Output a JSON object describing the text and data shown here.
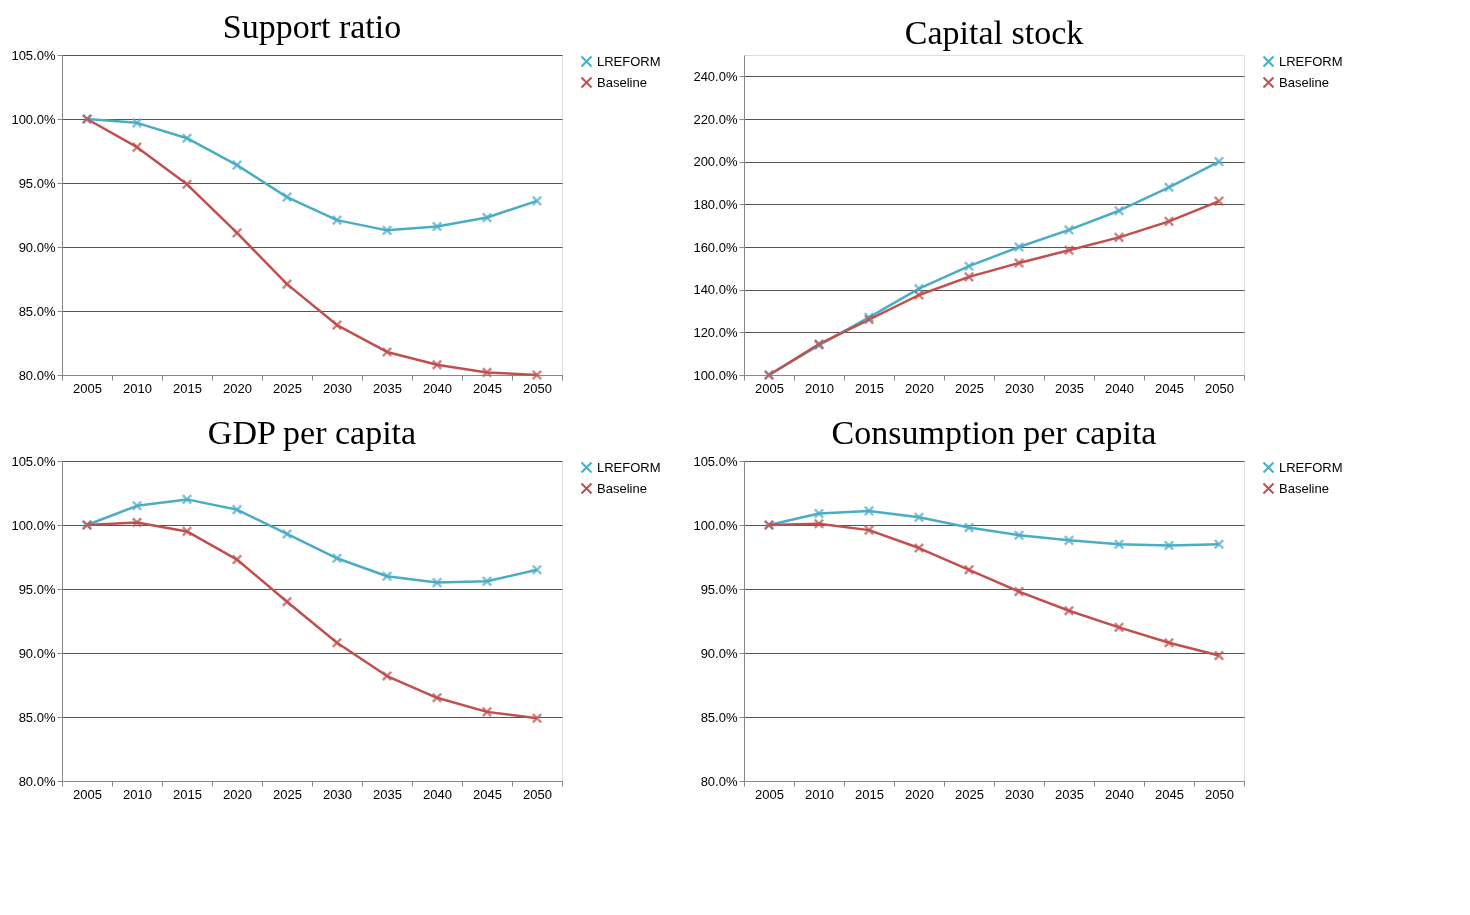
{
  "chart_data": [
    {
      "type": "line",
      "title": "Support ratio",
      "categories": [
        "2005",
        "2010",
        "2015",
        "2020",
        "2025",
        "2030",
        "2035",
        "2040",
        "2045",
        "2050"
      ],
      "ylim": [
        80,
        105
      ],
      "yticks": [
        {
          "value": 80,
          "label": "80.0%"
        },
        {
          "value": 85,
          "label": "85.0%"
        },
        {
          "value": 90,
          "label": "90.0%"
        },
        {
          "value": 95,
          "label": "95.0%"
        },
        {
          "value": 100,
          "label": "100.0%"
        },
        {
          "value": 105,
          "label": "105.0%"
        }
      ],
      "grid": "y",
      "legend": "right",
      "marker": "cross",
      "series": [
        {
          "name": "LREFORM",
          "color": "#4bacc6",
          "values": [
            100,
            99.7,
            98.5,
            96.4,
            93.9,
            92.1,
            91.3,
            91.6,
            92.3,
            93.6
          ]
        },
        {
          "name": "Baseline",
          "color": "#c0504d",
          "values": [
            100,
            97.8,
            94.9,
            91.1,
            87.1,
            83.9,
            81.8,
            80.8,
            80.2,
            80.0
          ]
        }
      ]
    },
    {
      "type": "line",
      "title": "Capital stock",
      "categories": [
        "2005",
        "2010",
        "2015",
        "2020",
        "2025",
        "2030",
        "2035",
        "2040",
        "2045",
        "2050"
      ],
      "ylim": [
        100,
        250
      ],
      "yticks": [
        {
          "value": 100,
          "label": "100.0%"
        },
        {
          "value": 120,
          "label": "120.0%"
        },
        {
          "value": 140,
          "label": "140.0%"
        },
        {
          "value": 160,
          "label": "160.0%"
        },
        {
          "value": 180,
          "label": "180.0%"
        },
        {
          "value": 200,
          "label": "200.0%"
        },
        {
          "value": 220,
          "label": "220.0%"
        },
        {
          "value": 240,
          "label": "240.0%"
        }
      ],
      "grid": "y",
      "legend": "right",
      "marker": "cross",
      "series": [
        {
          "name": "LREFORM",
          "color": "#4bacc6",
          "values": [
            100,
            114,
            127,
            140.5,
            151,
            160,
            168,
            177,
            188,
            200
          ]
        },
        {
          "name": "Baseline",
          "color": "#c0504d",
          "values": [
            100,
            114.5,
            126,
            137.5,
            146,
            152.5,
            158.5,
            164.5,
            172,
            181.5
          ]
        }
      ]
    },
    {
      "type": "line",
      "title": "GDP per capita",
      "categories": [
        "2005",
        "2010",
        "2015",
        "2020",
        "2025",
        "2030",
        "2035",
        "2040",
        "2045",
        "2050"
      ],
      "ylim": [
        80,
        105
      ],
      "yticks": [
        {
          "value": 80,
          "label": "80.0%"
        },
        {
          "value": 85,
          "label": "85.0%"
        },
        {
          "value": 90,
          "label": "90.0%"
        },
        {
          "value": 95,
          "label": "95.0%"
        },
        {
          "value": 100,
          "label": "100.0%"
        },
        {
          "value": 105,
          "label": "105.0%"
        }
      ],
      "grid": "y",
      "legend": "right",
      "marker": "cross",
      "series": [
        {
          "name": "LREFORM",
          "color": "#4bacc6",
          "values": [
            100,
            101.5,
            102,
            101.2,
            99.3,
            97.4,
            96.0,
            95.5,
            95.6,
            96.5
          ]
        },
        {
          "name": "Baseline",
          "color": "#c0504d",
          "values": [
            100,
            100.2,
            99.5,
            97.3,
            94.0,
            90.8,
            88.2,
            86.5,
            85.4,
            84.9
          ]
        }
      ]
    },
    {
      "type": "line",
      "title": "Consumption per capita",
      "categories": [
        "2005",
        "2010",
        "2015",
        "2020",
        "2025",
        "2030",
        "2035",
        "2040",
        "2045",
        "2050"
      ],
      "ylim": [
        80,
        105
      ],
      "yticks": [
        {
          "value": 80,
          "label": "80.0%"
        },
        {
          "value": 85,
          "label": "85.0%"
        },
        {
          "value": 90,
          "label": "90.0%"
        },
        {
          "value": 95,
          "label": "95.0%"
        },
        {
          "value": 100,
          "label": "100.0%"
        },
        {
          "value": 105,
          "label": "105.0%"
        }
      ],
      "grid": "y",
      "legend": "right",
      "marker": "cross",
      "series": [
        {
          "name": "LREFORM",
          "color": "#4bacc6",
          "values": [
            100,
            100.9,
            101.1,
            100.6,
            99.8,
            99.2,
            98.8,
            98.5,
            98.4,
            98.5
          ]
        },
        {
          "name": "Baseline",
          "color": "#c0504d",
          "values": [
            100,
            100.1,
            99.6,
            98.2,
            96.5,
            94.8,
            93.3,
            92.0,
            90.8,
            89.8
          ]
        }
      ]
    }
  ]
}
